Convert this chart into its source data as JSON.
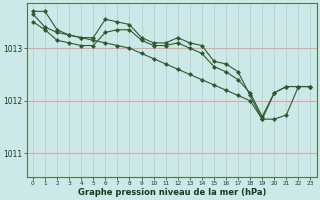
{
  "title": "Graphe pression niveau de la mer (hPa)",
  "background_color": "#cce8e8",
  "line_color": "#2d5a2d",
  "grid_color_h": "#e8a0a0",
  "grid_color_v": "#b0ccc0",
  "xlim": [
    -0.5,
    23.5
  ],
  "ylim": [
    1010.55,
    1013.85
  ],
  "yticks": [
    1011,
    1012,
    1013
  ],
  "xticks": [
    0,
    1,
    2,
    3,
    4,
    5,
    6,
    7,
    8,
    9,
    10,
    11,
    12,
    13,
    14,
    15,
    16,
    17,
    18,
    19,
    20,
    21,
    22,
    23
  ],
  "line1": [
    1013.7,
    1013.7,
    1013.35,
    1013.25,
    1013.2,
    1013.2,
    1013.55,
    1013.5,
    1013.45,
    1013.2,
    1013.1,
    1013.1,
    1013.2,
    1013.1,
    1013.05,
    1012.75,
    1012.7,
    1012.55,
    1012.1,
    1011.65,
    1012.15,
    1012.27,
    1012.27,
    1012.27
  ],
  "line2": [
    1013.5,
    1013.35,
    1013.15,
    1013.1,
    1013.05,
    1013.05,
    1013.3,
    1013.35,
    1013.35,
    1013.15,
    1013.05,
    1013.05,
    1013.1,
    1013.0,
    1012.9,
    1012.65,
    1012.55,
    1012.4,
    1012.15,
    1011.7,
    1012.15,
    1012.27,
    1012.27,
    1012.27
  ],
  "line3": [
    1013.65,
    1013.4,
    1013.3,
    1013.25,
    1013.2,
    1013.15,
    1013.1,
    1013.05,
    1013.0,
    1012.9,
    1012.8,
    1012.7,
    1012.6,
    1012.5,
    1012.4,
    1012.3,
    1012.2,
    1012.1,
    1012.0,
    1011.65,
    1011.65,
    1011.73,
    1012.27,
    1012.27
  ]
}
